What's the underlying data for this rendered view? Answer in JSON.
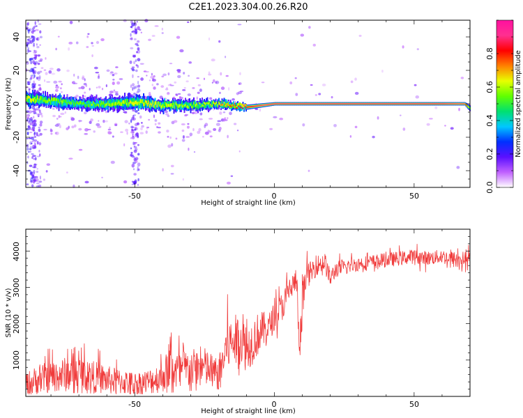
{
  "title": "C2E1.2023.304.00.26.R20",
  "colors": {
    "snr_line": "#f03a3a",
    "colormap": [
      "#ffffff",
      "#c060ff",
      "#5a10ff",
      "#0030ff",
      "#00c8ff",
      "#00e070",
      "#60ff00",
      "#e8ff00",
      "#ff8000",
      "#ff0000",
      "#ff3090",
      "#ff10a0"
    ]
  },
  "chart_data": [
    {
      "type": "heatmap",
      "title": "C2E1.2023.304.00.26.R20",
      "xlabel": "Height of straight line (km)",
      "ylabel": "Frequency (Hz)",
      "xlim": [
        -89,
        70
      ],
      "ylim": [
        -50,
        50
      ],
      "x_ticks": [
        "-50",
        "0",
        "50"
      ],
      "y_ticks": [
        "-40",
        "-20",
        "0",
        "20",
        "40"
      ],
      "colorbar": {
        "label": "Normalized spectral amplitude",
        "range": [
          0,
          1
        ],
        "ticks": [
          "0.0",
          "0.2",
          "0.4",
          "0.6",
          "0.8"
        ]
      },
      "ridge": {
        "description_points_x": [
          -89,
          -80,
          -70,
          -60,
          -50,
          -40,
          -30,
          -20,
          -15,
          -10,
          0,
          10,
          20,
          30,
          40,
          50,
          60,
          68,
          70
        ],
        "center_frequency_hz": [
          3,
          2,
          0,
          0,
          1,
          -1,
          -1,
          0,
          -1,
          -2,
          0,
          0,
          0,
          0,
          0,
          0,
          0,
          0,
          -3
        ],
        "peak_amplitude": [
          0.55,
          0.5,
          0.45,
          0.5,
          0.55,
          0.55,
          0.5,
          0.6,
          0.7,
          0.85,
          0.95,
          0.95,
          0.95,
          0.95,
          0.95,
          0.95,
          0.95,
          0.9,
          0.5
        ],
        "spread_hz": [
          8,
          8,
          7,
          7,
          8,
          7,
          6,
          5,
          4,
          3,
          2,
          2,
          2,
          2,
          2,
          2,
          2,
          2,
          4
        ]
      }
    },
    {
      "type": "line",
      "xlabel": "Height of straight line (km)",
      "ylabel": "SNR (10 * v/v)",
      "xlim": [
        -89,
        70
      ],
      "ylim": [
        0,
        4600
      ],
      "x_ticks": [
        "-50",
        "0",
        "50"
      ],
      "y_ticks": [
        "1000",
        "2000",
        "3000",
        "4000"
      ],
      "x": [
        -89,
        -85,
        -80,
        -75,
        -70,
        -65,
        -60,
        -55,
        -50,
        -45,
        -40,
        -37,
        -35,
        -30,
        -25,
        -20,
        -17,
        -15,
        -12,
        -10,
        -7,
        -5,
        -2,
        0,
        3,
        5,
        8,
        9,
        10,
        11,
        13,
        15,
        18,
        20,
        22,
        25,
        30,
        35,
        40,
        45,
        50,
        55,
        60,
        65,
        70
      ],
      "y": [
        300,
        450,
        550,
        600,
        650,
        550,
        450,
        400,
        350,
        400,
        550,
        850,
        700,
        750,
        800,
        550,
        1400,
        1500,
        1600,
        1300,
        1600,
        1800,
        1900,
        2200,
        2500,
        2900,
        3200,
        1000,
        2400,
        3300,
        3400,
        3600,
        3700,
        3200,
        3500,
        3550,
        3650,
        3700,
        3750,
        3800,
        3850,
        3800,
        3850,
        3750,
        3800
      ],
      "noise_amplitude": [
        450,
        500,
        550,
        600,
        600,
        550,
        500,
        450,
        400,
        450,
        550,
        800,
        700,
        700,
        700,
        600,
        900,
        900,
        900,
        800,
        800,
        700,
        500,
        500,
        500,
        450,
        450,
        400,
        800,
        450,
        400,
        350,
        350,
        350,
        300,
        250,
        250,
        250,
        250,
        250,
        250,
        250,
        250,
        300,
        250
      ],
      "peak_max": [
        1700,
        1700,
        1700,
        1700,
        1700,
        1600,
        1500,
        1300,
        1100,
        1400,
        1600,
        2850,
        1900,
        2000,
        2100,
        1500,
        3100,
        2700,
        3200,
        2800,
        3000,
        3200,
        3100,
        3300,
        3600,
        3900,
        4400,
        4400,
        4500,
        4300,
        4550,
        4450,
        4300,
        4000,
        4100,
        4100,
        4300,
        4300,
        4300,
        4300,
        4400,
        4350,
        4400,
        4300,
        4350
      ],
      "dip_min": [
        50,
        60,
        80,
        90,
        90,
        80,
        70,
        60,
        60,
        60,
        80,
        100,
        120,
        150,
        180,
        200,
        400,
        500,
        600,
        700,
        800,
        1000,
        1200,
        1500,
        1800,
        2200,
        2500,
        200,
        1600,
        2600,
        2700,
        2800,
        3000,
        3100,
        3200,
        3250,
        3300,
        3350,
        3350,
        3350,
        3350,
        3300,
        3050,
        3100,
        3200
      ]
    }
  ]
}
